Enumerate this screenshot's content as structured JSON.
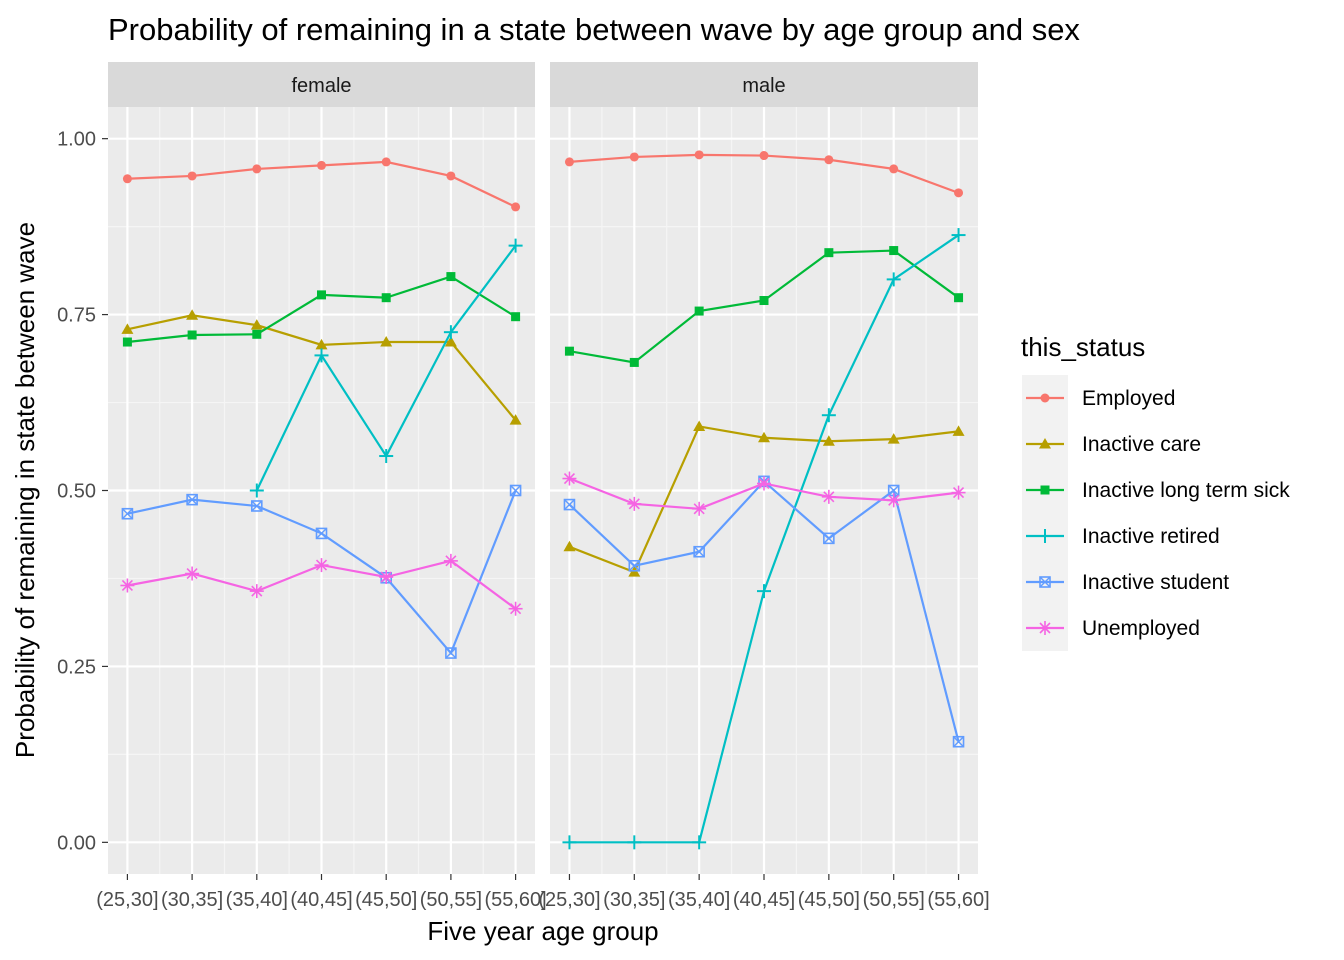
{
  "chart_data": {
    "type": "line",
    "title": "Probability of remaining in a state between wave by age group and sex",
    "xlabel": "Five year age group",
    "ylabel": "Probability of remaining in state between wave",
    "ylim": [
      -0.045,
      1.045
    ],
    "y_ticks": [
      "0.00",
      "0.25",
      "0.50",
      "0.75",
      "1.00"
    ],
    "y_tick_values": [
      0,
      0.25,
      0.5,
      0.75,
      1
    ],
    "categories": [
      "(25,30]",
      "(30,35]",
      "(35,40]",
      "(40,45]",
      "(45,50]",
      "(50,55]",
      "(55,60]"
    ],
    "grid": true,
    "legend_position": "right",
    "legend_title": "this_status",
    "series_meta": [
      {
        "name": "Employed",
        "color": "#F8766D",
        "marker": "circle"
      },
      {
        "name": "Inactive care",
        "color": "#B79F00",
        "marker": "triangle"
      },
      {
        "name": "Inactive long term sick",
        "color": "#00BA38",
        "marker": "square"
      },
      {
        "name": "Inactive retired",
        "color": "#00BFC4",
        "marker": "plus"
      },
      {
        "name": "Inactive student",
        "color": "#619CFF",
        "marker": "square-cross"
      },
      {
        "name": "Unemployed",
        "color": "#F564E3",
        "marker": "asterisk"
      }
    ],
    "panels": [
      {
        "label": "female",
        "series": [
          {
            "name": "Employed",
            "values": [
              0.943,
              0.947,
              0.957,
              0.962,
              0.967,
              0.947,
              0.903
            ]
          },
          {
            "name": "Inactive care",
            "values": [
              0.729,
              0.749,
              0.735,
              0.707,
              0.711,
              0.711,
              0.6
            ]
          },
          {
            "name": "Inactive long term sick",
            "values": [
              0.711,
              0.721,
              0.722,
              0.778,
              0.774,
              0.804,
              0.747
            ]
          },
          {
            "name": "Inactive retired",
            "values": [
              null,
              null,
              0.5,
              0.692,
              0.549,
              0.725,
              0.848
            ]
          },
          {
            "name": "Inactive student",
            "values": [
              0.467,
              0.487,
              0.478,
              0.439,
              0.376,
              0.269,
              0.5
            ]
          },
          {
            "name": "Unemployed",
            "values": [
              0.365,
              0.382,
              0.357,
              0.394,
              0.377,
              0.4,
              0.332
            ]
          }
        ]
      },
      {
        "label": "male",
        "series": [
          {
            "name": "Employed",
            "values": [
              0.967,
              0.974,
              0.977,
              0.976,
              0.97,
              0.957,
              0.923
            ]
          },
          {
            "name": "Inactive care",
            "values": [
              0.42,
              0.384,
              0.591,
              0.575,
              0.57,
              0.573,
              0.584
            ]
          },
          {
            "name": "Inactive long term sick",
            "values": [
              0.698,
              0.682,
              0.755,
              0.77,
              0.838,
              0.841,
              0.774
            ]
          },
          {
            "name": "Inactive retired",
            "values": [
              0.0,
              0.0,
              0.0,
              0.357,
              0.607,
              0.8,
              0.863
            ]
          },
          {
            "name": "Inactive student",
            "values": [
              0.48,
              0.393,
              0.413,
              0.513,
              0.432,
              0.5,
              0.143
            ]
          },
          {
            "name": "Unemployed",
            "values": [
              0.517,
              0.481,
              0.474,
              0.51,
              0.491,
              0.486,
              0.497
            ]
          }
        ]
      }
    ]
  }
}
